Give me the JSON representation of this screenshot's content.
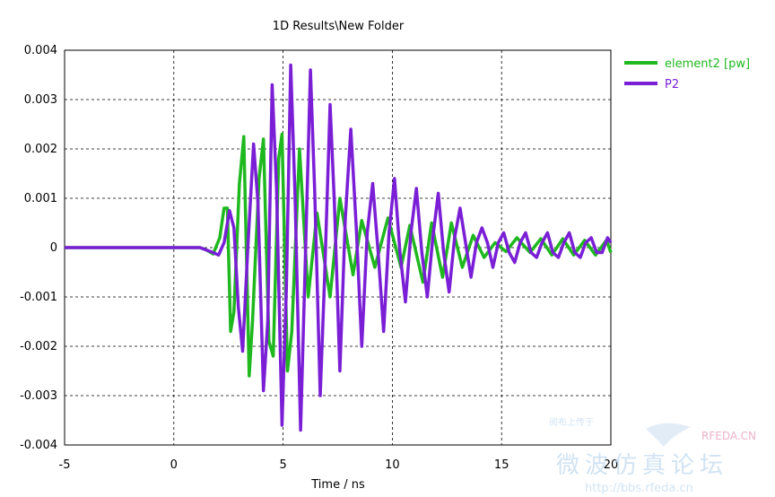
{
  "chart_data": {
    "type": "line",
    "title": "1D Results\\New Folder",
    "xlabel": "Time / ns",
    "ylabel": "",
    "xlim": [
      -5,
      20
    ],
    "ylim": [
      -0.004,
      0.004
    ],
    "x_ticks": [
      "-5",
      "0",
      "5",
      "10",
      "15",
      "20"
    ],
    "y_ticks": [
      "-0.004",
      "-0.003",
      "-0.002",
      "-0.001",
      "0",
      "0.001",
      "0.002",
      "0.003",
      "0.004"
    ],
    "grid": true,
    "legend_position": "top-right (outside plot)",
    "series": [
      {
        "name": "element2 [pw]",
        "color": "#1fb81f",
        "points": [
          [
            -5,
            0
          ],
          [
            0.5,
            0
          ],
          [
            1.2,
            0
          ],
          [
            1.5,
            -5e-05
          ],
          [
            1.8,
            -0.00013
          ],
          [
            2.1,
            0.0002
          ],
          [
            2.3,
            0.0008
          ],
          [
            2.45,
            0.0008
          ],
          [
            2.6,
            -0.0017
          ],
          [
            2.75,
            -0.0013
          ],
          [
            3.0,
            0.0013
          ],
          [
            3.2,
            0.00225
          ],
          [
            3.45,
            -0.0026
          ],
          [
            3.6,
            -0.0015
          ],
          [
            3.9,
            0.0014
          ],
          [
            4.1,
            0.0022
          ],
          [
            4.35,
            -0.0019
          ],
          [
            4.55,
            -0.0022
          ],
          [
            4.8,
            0.0018
          ],
          [
            4.95,
            0.0023
          ],
          [
            5.2,
            -0.0025
          ],
          [
            5.4,
            -0.0017
          ],
          [
            5.75,
            0.002
          ],
          [
            6.15,
            -0.001
          ],
          [
            6.55,
            0.0007
          ],
          [
            7.15,
            -0.001
          ],
          [
            7.6,
            0.001
          ],
          [
            8.2,
            -0.00055
          ],
          [
            8.6,
            0.00055
          ],
          [
            9.2,
            -0.0004
          ],
          [
            9.8,
            0.0006
          ],
          [
            10.4,
            -0.0004
          ],
          [
            10.8,
            0.00045
          ],
          [
            11.4,
            -0.0007
          ],
          [
            11.8,
            0.0005
          ],
          [
            12.3,
            -0.0006
          ],
          [
            12.7,
            0.0005
          ],
          [
            13.2,
            -0.0004
          ],
          [
            13.7,
            0.00025
          ],
          [
            14.2,
            -0.0002
          ],
          [
            14.7,
            0.0001
          ],
          [
            15.2,
            -8e-05
          ],
          [
            15.7,
            0.0002
          ],
          [
            16.3,
            -0.0001
          ],
          [
            16.8,
            0.00018
          ],
          [
            17.3,
            -0.00015
          ],
          [
            17.8,
            0.00018
          ],
          [
            18.3,
            -0.00015
          ],
          [
            18.8,
            0.00015
          ],
          [
            19.3,
            -0.00015
          ],
          [
            19.8,
            0.00015
          ],
          [
            20,
            -0.0001
          ]
        ]
      },
      {
        "name": "P2",
        "color": "#7a1fd6",
        "points": [
          [
            -5,
            0
          ],
          [
            0.5,
            0
          ],
          [
            1.2,
            0
          ],
          [
            1.5,
            -5e-05
          ],
          [
            1.8,
            -0.0001
          ],
          [
            2.05,
            -0.00015
          ],
          [
            2.3,
            0.0001
          ],
          [
            2.55,
            0.00075
          ],
          [
            2.75,
            0.0004
          ],
          [
            2.95,
            -0.0012
          ],
          [
            3.15,
            -0.0021
          ],
          [
            3.4,
            0.0001
          ],
          [
            3.65,
            0.0021
          ],
          [
            3.85,
            0.0009
          ],
          [
            4.1,
            -0.0029
          ],
          [
            4.3,
            -0.0015
          ],
          [
            4.5,
            0.0033
          ],
          [
            4.7,
            0.0012
          ],
          [
            4.95,
            -0.0036
          ],
          [
            5.15,
            -0.0008
          ],
          [
            5.35,
            0.0037
          ],
          [
            5.55,
            0.001
          ],
          [
            5.8,
            -0.0037
          ],
          [
            6.0,
            -0.0005
          ],
          [
            6.25,
            0.0036
          ],
          [
            6.45,
            0.0011
          ],
          [
            6.7,
            -0.003
          ],
          [
            6.9,
            -0.0006
          ],
          [
            7.15,
            0.0029
          ],
          [
            7.35,
            0.0009
          ],
          [
            7.6,
            -0.0025
          ],
          [
            7.85,
            0.0006
          ],
          [
            8.1,
            0.0024
          ],
          [
            8.35,
            0.0004
          ],
          [
            8.6,
            -0.002
          ],
          [
            8.85,
            0.0003
          ],
          [
            9.1,
            0.0013
          ],
          [
            9.35,
            -0.0001
          ],
          [
            9.6,
            -0.0017
          ],
          [
            9.85,
            0.0003
          ],
          [
            10.1,
            0.0014
          ],
          [
            10.35,
            -0.0001
          ],
          [
            10.6,
            -0.0011
          ],
          [
            10.85,
            0.0003
          ],
          [
            11.1,
            0.0012
          ],
          [
            11.35,
            -0.0001
          ],
          [
            11.6,
            -0.001
          ],
          [
            11.85,
            0.0002
          ],
          [
            12.1,
            0.0011
          ],
          [
            12.35,
            -0.0001
          ],
          [
            12.6,
            -0.0009
          ],
          [
            12.85,
            0.0002
          ],
          [
            13.1,
            0.0008
          ],
          [
            13.35,
            0.0001
          ],
          [
            13.6,
            -0.0006
          ],
          [
            13.85,
            0.0001
          ],
          [
            14.1,
            0.0004
          ],
          [
            14.35,
            0.0001
          ],
          [
            14.6,
            -0.0004
          ],
          [
            14.85,
            0.0001
          ],
          [
            15.1,
            0.0003
          ],
          [
            15.35,
            -0.0001
          ],
          [
            15.6,
            -0.0003
          ],
          [
            15.85,
            0.0001
          ],
          [
            16.1,
            0.0003
          ],
          [
            16.35,
            -0.0001
          ],
          [
            16.6,
            -0.0002
          ],
          [
            16.85,
            0.0001
          ],
          [
            17.1,
            0.0003
          ],
          [
            17.35,
            -0.0001
          ],
          [
            17.6,
            -0.0002
          ],
          [
            17.85,
            0.0001
          ],
          [
            18.1,
            0.0003
          ],
          [
            18.35,
            -0.0001
          ],
          [
            18.6,
            -0.0002
          ],
          [
            18.85,
            0.0001
          ],
          [
            19.1,
            0.0002
          ],
          [
            19.35,
            -0.0001
          ],
          [
            19.6,
            -0.0001
          ],
          [
            19.85,
            0.0002
          ],
          [
            20,
            0.0001
          ]
        ]
      }
    ]
  },
  "watermark": {
    "logo_text": "RFEDA.CN",
    "cn_text": "微波仿真论坛",
    "url_text": "http://bbs.rfeda.cn",
    "small_text": "阅布上传于"
  }
}
